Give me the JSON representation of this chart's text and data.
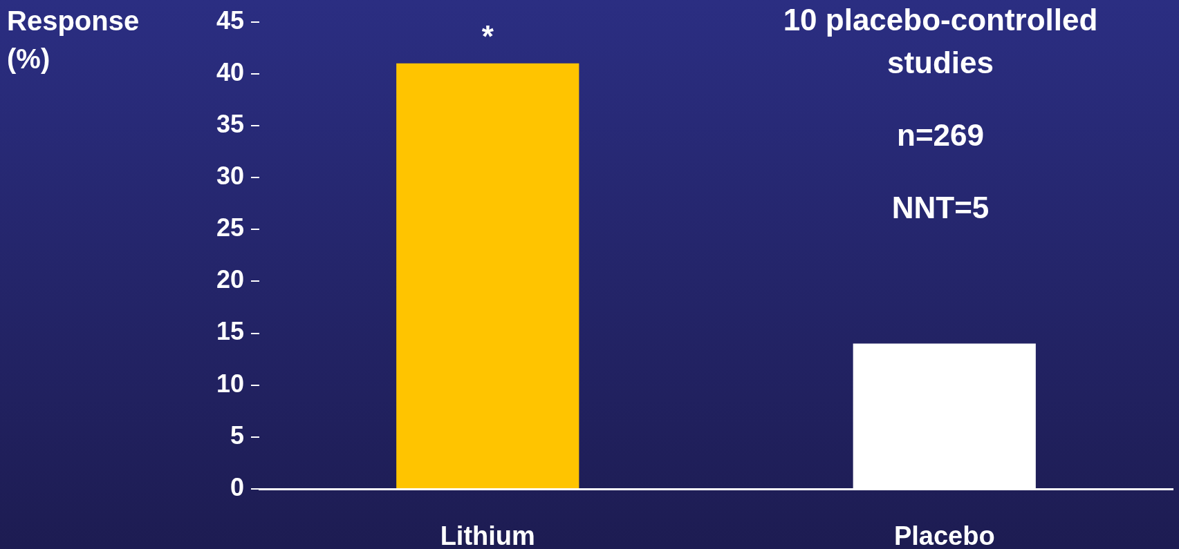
{
  "chart_data": {
    "type": "bar",
    "ylabel": "Response (%)",
    "categories": [
      "Lithium",
      "Placebo"
    ],
    "values": [
      41,
      14
    ],
    "colors": [
      "#ffc400",
      "#ffffff"
    ],
    "ylim": [
      0,
      45
    ],
    "yticks": [
      0,
      5,
      10,
      15,
      20,
      25,
      30,
      35,
      40,
      45
    ],
    "grid": false,
    "annotations": [
      {
        "text": "*",
        "x": "Lithium",
        "y": 41
      },
      "10 placebo-controlled studies",
      "n=269",
      "NNT=5"
    ]
  }
}
